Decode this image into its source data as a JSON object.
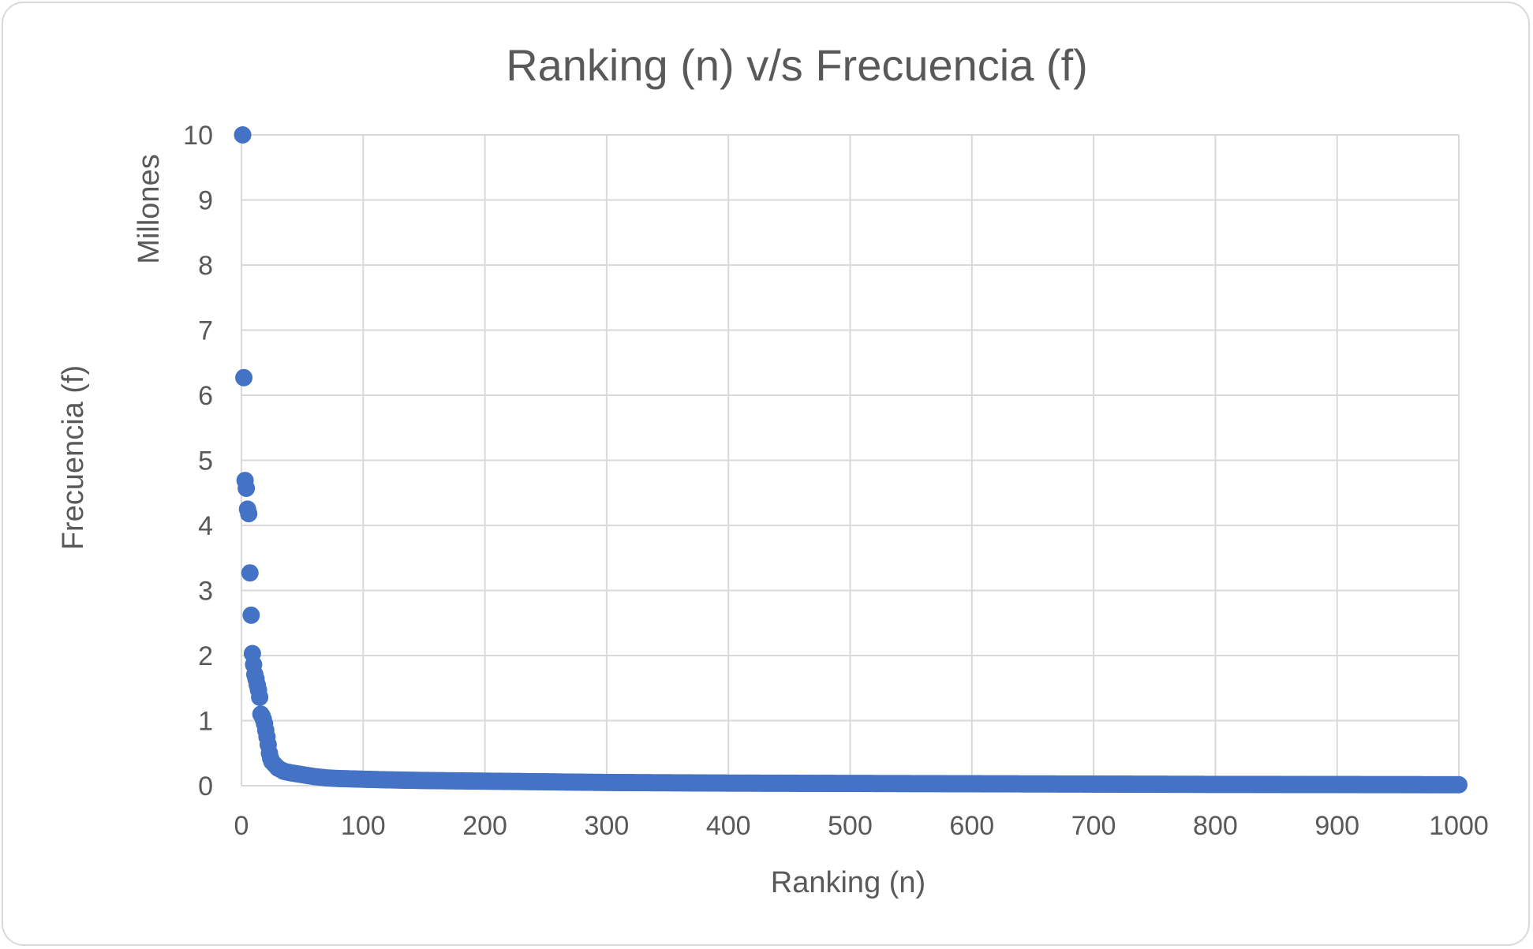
{
  "chart_data": {
    "type": "scatter",
    "title": "Ranking (n) v/s Frecuencia (f)",
    "xlabel": "Ranking (n)",
    "ylabel": "Frecuencia (f)",
    "y_display_unit": "Millones",
    "xlim": [
      0,
      1000
    ],
    "ylim": [
      0,
      10
    ],
    "x_ticks": [
      "0",
      "100",
      "200",
      "300",
      "400",
      "500",
      "600",
      "700",
      "800",
      "900",
      "1000"
    ],
    "y_ticks": [
      "0",
      "1",
      "2",
      "3",
      "4",
      "5",
      "6",
      "7",
      "8",
      "9",
      "10"
    ],
    "grid": true,
    "legend": "none",
    "marker_color": "#4472c4",
    "series": [
      {
        "x": [
          1,
          2,
          3,
          4,
          5,
          6,
          7,
          8,
          9,
          10,
          11,
          12,
          13,
          14,
          15,
          16,
          17,
          18,
          19,
          20,
          21,
          22,
          23,
          24,
          25,
          30,
          35,
          40,
          50,
          60,
          70,
          80,
          100,
          120,
          150,
          200,
          250,
          300,
          400,
          500,
          600,
          700,
          800,
          900,
          1000
        ],
        "y": [
          10.0,
          6.27,
          4.69,
          4.57,
          4.25,
          4.18,
          3.27,
          2.62,
          2.03,
          1.86,
          1.71,
          1.64,
          1.55,
          1.47,
          1.36,
          1.1,
          1.07,
          1.02,
          0.95,
          0.85,
          0.75,
          0.63,
          0.5,
          0.42,
          0.37,
          0.27,
          0.22,
          0.2,
          0.17,
          0.14,
          0.12,
          0.11,
          0.1,
          0.09,
          0.08,
          0.07,
          0.06,
          0.05,
          0.04,
          0.035,
          0.03,
          0.025,
          0.02,
          0.018,
          0.015
        ]
      }
    ]
  }
}
